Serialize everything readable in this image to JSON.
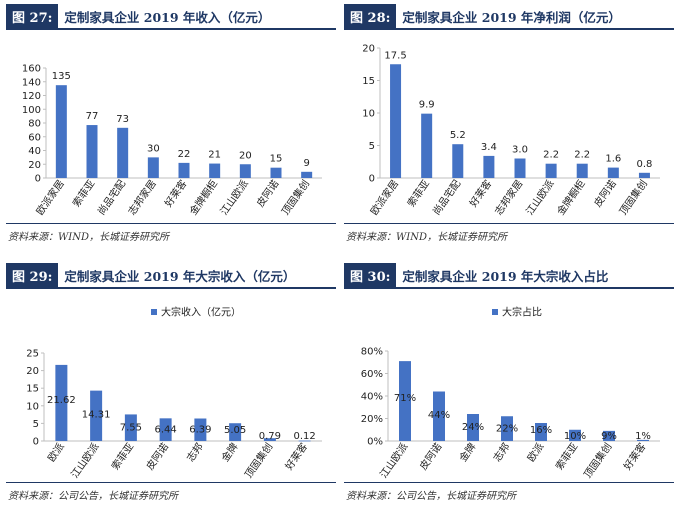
{
  "colors": {
    "bar": "#4472c4",
    "header": "#1f3864",
    "text": "#222222",
    "axis": "#bfbfbf"
  },
  "panels": [
    {
      "fig_label": "图 27:",
      "fig_title": "定制家具企业 2019 年收入（亿元）",
      "source": "资料来源：WIND，长城证券研究所"
    },
    {
      "fig_label": "图 28:",
      "fig_title": "定制家具企业 2019 年净利润（亿元）",
      "source": "资料来源：WIND，长城证券研究所"
    },
    {
      "fig_label": "图 29:",
      "fig_title": "定制家具企业 2019 年大宗收入（亿元）",
      "source": "资料来源：公司公告，长城证券研究所"
    },
    {
      "fig_label": "图 30:",
      "fig_title": "定制家具企业 2019 年大宗收入占比",
      "source": "资料来源：公司公告，长城证券研究所"
    }
  ],
  "chart_data": [
    {
      "type": "bar",
      "title": "定制家具企业 2019 年收入（亿元）",
      "categories": [
        "欧派家居",
        "索菲亚",
        "尚品宅配",
        "志邦家居",
        "好莱客",
        "金牌橱柜",
        "江山欧派",
        "皮阿诺",
        "顶固集创"
      ],
      "values": [
        135,
        77,
        73,
        30,
        22,
        21,
        20,
        15,
        9
      ],
      "labels": [
        "135",
        "77",
        "73",
        "30",
        "22",
        "21",
        "20",
        "15",
        "9"
      ],
      "ylim": [
        0,
        160
      ],
      "yticks": [
        0,
        20,
        40,
        60,
        80,
        100,
        120,
        140,
        160
      ],
      "ytick_labels": [
        "0",
        "20",
        "40",
        "60",
        "80",
        "100",
        "120",
        "140",
        "160"
      ],
      "legend": "",
      "grid": false
    },
    {
      "type": "bar",
      "title": "定制家具企业 2019 年净利润（亿元）",
      "categories": [
        "欧派家居",
        "索菲亚",
        "尚品宅配",
        "好莱客",
        "志邦家居",
        "江山欧派",
        "金牌橱柜",
        "皮阿诺",
        "顶固集创"
      ],
      "values": [
        17.5,
        9.9,
        5.2,
        3.4,
        3.0,
        2.2,
        2.2,
        1.6,
        0.8
      ],
      "labels": [
        "17.5",
        "9.9",
        "5.2",
        "3.4",
        "3.0",
        "2.2",
        "2.2",
        "1.6",
        "0.8"
      ],
      "ylim": [
        0,
        20
      ],
      "yticks": [
        0,
        5,
        10,
        15,
        20
      ],
      "ytick_labels": [
        "0",
        "5",
        "10",
        "15",
        "20"
      ],
      "legend": "",
      "grid": false
    },
    {
      "type": "bar",
      "title": "定制家具企业 2019 年大宗收入（亿元）",
      "categories": [
        "欧派",
        "江山欧派",
        "索菲亚",
        "皮阿诺",
        "志邦",
        "金牌",
        "顶固集创",
        "好莱客"
      ],
      "values": [
        21.62,
        14.31,
        7.55,
        6.44,
        6.39,
        5.05,
        0.79,
        0.12
      ],
      "labels": [
        "21.62",
        "14.31",
        "7.55",
        "6.44",
        "6.39",
        "5.05",
        "0.79",
        "0.12"
      ],
      "ylim": [
        0,
        25
      ],
      "yticks": [
        0,
        5,
        10,
        15,
        20,
        25
      ],
      "ytick_labels": [
        "0",
        "5",
        "10",
        "15",
        "20",
        "25"
      ],
      "legend": "大宗收入（亿元）",
      "grid": false
    },
    {
      "type": "bar",
      "title": "定制家具企业 2019 年大宗收入占比",
      "categories": [
        "江山欧派",
        "皮阿诺",
        "金牌",
        "志邦",
        "欧派",
        "索菲亚",
        "顶固集创",
        "好莱客"
      ],
      "values": [
        71,
        44,
        24,
        22,
        16,
        10,
        9,
        1
      ],
      "labels": [
        "71%",
        "44%",
        "24%",
        "22%",
        "16%",
        "10%",
        "9%",
        "1%"
      ],
      "ylim": [
        0,
        80
      ],
      "yticks": [
        0,
        20,
        40,
        60,
        80
      ],
      "ytick_labels": [
        "0%",
        "20%",
        "40%",
        "60%",
        "80%"
      ],
      "legend": "大宗占比",
      "grid": false
    }
  ]
}
